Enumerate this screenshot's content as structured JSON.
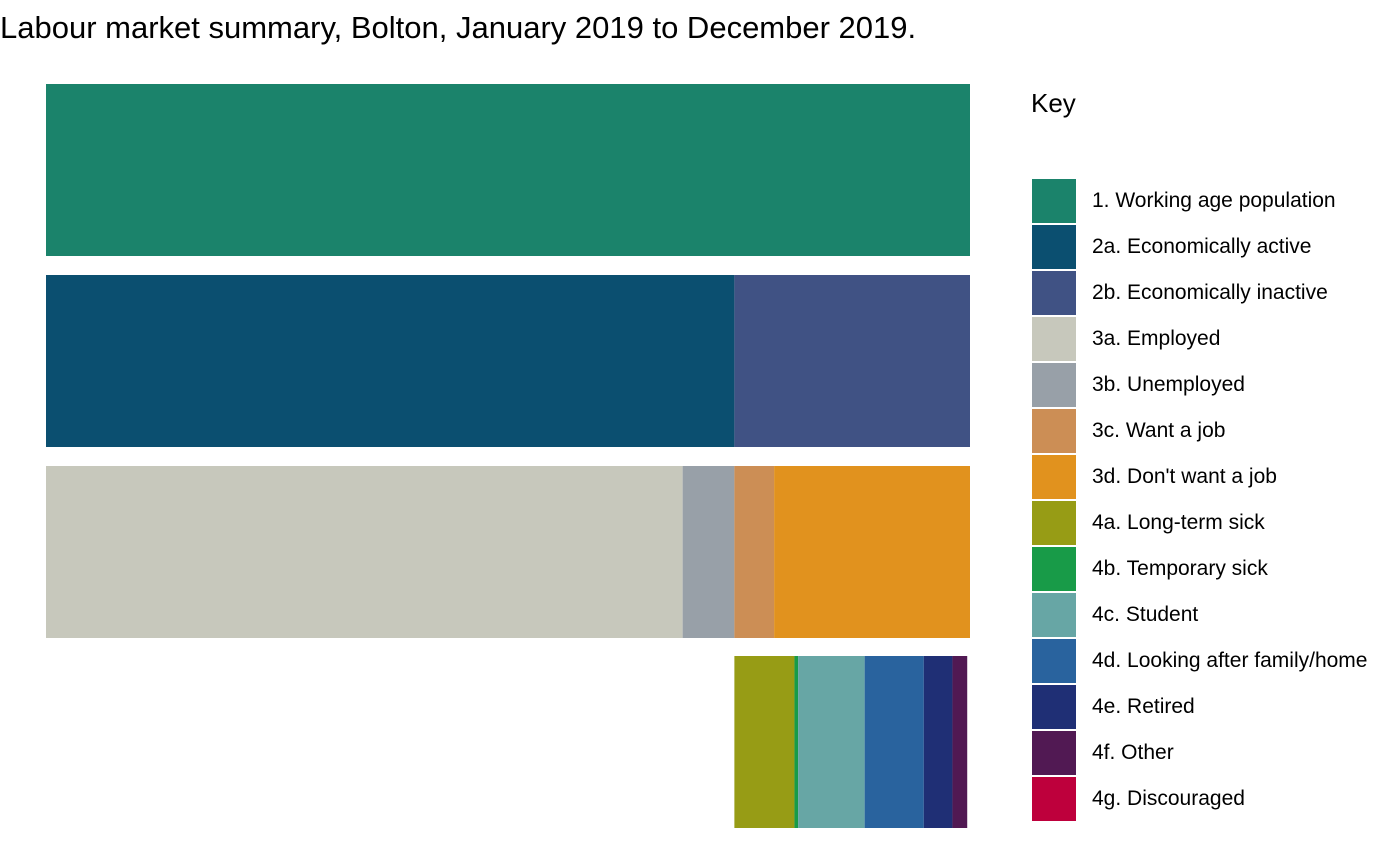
{
  "chart_data": {
    "type": "bar",
    "title": "Labour market summary, Bolton, January 2019 to December 2019.",
    "legend_title": "Key",
    "legend_position": "right",
    "grid": false,
    "xlim": [
      0,
      100
    ],
    "rows": [
      {
        "segments": [
          {
            "category": "1. Working age population",
            "value": 100
          }
        ]
      },
      {
        "segments": [
          {
            "category": "2a. Economically active",
            "value": 74.5
          },
          {
            "category": "2b. Economically inactive",
            "value": 25.5
          }
        ]
      },
      {
        "segments": [
          {
            "category": "3a. Employed",
            "value": 68.9
          },
          {
            "category": "3b. Unemployed",
            "value": 5.6
          },
          {
            "category": "3c. Want a job",
            "value": 4.3
          },
          {
            "category": "3d. Don't want a job",
            "value": 21.2
          }
        ]
      },
      {
        "start": 74.5,
        "segments": [
          {
            "category": "4a. Long-term sick",
            "value": 6.5
          },
          {
            "category": "4b. Temporary sick",
            "value": 0.4
          },
          {
            "category": "4c. Student",
            "value": 7.2
          },
          {
            "category": "4d. Looking after family/home",
            "value": 6.4
          },
          {
            "category": "4e. Retired",
            "value": 3.1
          },
          {
            "category": "4f. Other",
            "value": 1.6
          },
          {
            "category": "4g. Discouraged",
            "value": 0.0
          }
        ]
      }
    ],
    "legend": [
      {
        "label": "1. Working age population",
        "color": "#1B836B"
      },
      {
        "label": "2a. Economically active",
        "color": "#0B4F70"
      },
      {
        "label": "2b. Economically inactive",
        "color": "#405284"
      },
      {
        "label": "3a. Employed",
        "color": "#C7C8BC"
      },
      {
        "label": "3b. Unemployed",
        "color": "#98A0A8"
      },
      {
        "label": "3c. Want a job",
        "color": "#CC8E55"
      },
      {
        "label": "3d. Don't want a job",
        "color": "#E1921E"
      },
      {
        "label": "4a. Long-term sick",
        "color": "#979C15"
      },
      {
        "label": "4b. Temporary sick",
        "color": "#189B48"
      },
      {
        "label": "4c. Student",
        "color": "#67A6A5"
      },
      {
        "label": "4d. Looking after family/home",
        "color": "#29639E"
      },
      {
        "label": "4e. Retired",
        "color": "#1F2F75"
      },
      {
        "label": "4f. Other",
        "color": "#511953"
      },
      {
        "label": "4g. Discouraged",
        "color": "#BE003C"
      }
    ]
  }
}
